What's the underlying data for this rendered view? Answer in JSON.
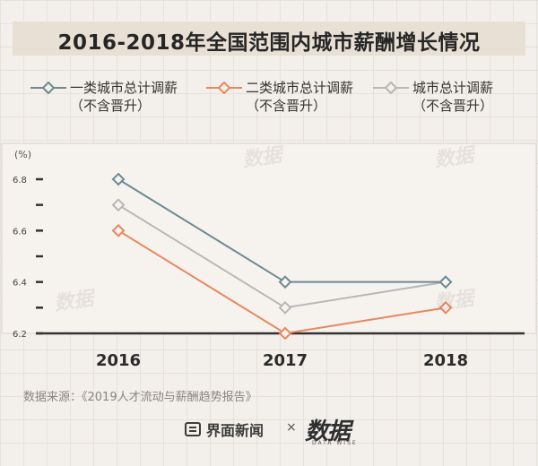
{
  "title": "2016-2018年全国范围内城市薪酬增长情况",
  "legend": [
    {
      "label": "一类城市总计调薪",
      "sub": "（不含晋升）",
      "color": "#6d8a93"
    },
    {
      "label": "二类城市总计调薪",
      "sub": "（不含晋升）",
      "color": "#e8875f"
    },
    {
      "label": "城市总计调薪",
      "sub": "（不含晋升）",
      "color": "#b7b7b7"
    }
  ],
  "source": "数据来源：《2019人才流动与薪酬趋势报告》",
  "footer": {
    "brand": "界面新闻",
    "times": "×",
    "logo": "数据",
    "logo_sub": "DATA WISE"
  },
  "watermark": "数据",
  "chart_data": {
    "type": "line",
    "x": [
      "2016",
      "2017",
      "2018"
    ],
    "series": [
      {
        "name": "一类城市总计调薪（不含晋升）",
        "values": [
          6.8,
          6.4,
          6.4
        ],
        "color": "#6d8a93"
      },
      {
        "name": "二类城市总计调薪（不含晋升）",
        "values": [
          6.6,
          6.2,
          6.3
        ],
        "color": "#e8875f"
      },
      {
        "name": "城市总计调薪（不含晋升）",
        "values": [
          6.7,
          6.3,
          6.4
        ],
        "color": "#b7b7b7"
      }
    ],
    "unit_label": "(%)",
    "ylim": [
      6.2,
      6.8
    ],
    "yticks": [
      6.2,
      6.4,
      6.6,
      6.8
    ],
    "ytick_labels": [
      "6.2",
      "6.4",
      "6.6",
      "6.8"
    ],
    "minor_ticks": [
      6.3,
      6.5,
      6.7
    ],
    "legend_position": "top"
  }
}
